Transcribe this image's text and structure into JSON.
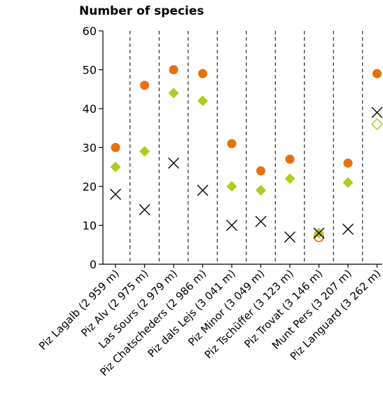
{
  "chart_data": {
    "type": "scatter",
    "title": "",
    "ylabel": "Number of species",
    "xlabel": "",
    "ylim": [
      0,
      60
    ],
    "yticks": [
      0,
      10,
      20,
      30,
      40,
      50,
      60
    ],
    "categories": [
      "Piz Lagalb (2 959 m)",
      "Piz Alv (2 975 m)",
      "Las Sours (2 979 m)",
      "Piz Chatscheders (2 986 m)",
      "Piz dals Lejs (3 041 m)",
      "Piz Minor (3 049 m)",
      "Piz Tschüffer (3 123 m)",
      "Piz Trovat (3 146 m)",
      "Munt Pers (3 207 m)",
      "Piz Languard (3 262 m)"
    ],
    "series": [
      {
        "marker": "circle",
        "color": "#e8700a",
        "values": [
          30,
          46,
          50,
          49,
          31,
          24,
          27,
          7,
          26,
          49
        ],
        "hollow": [
          false,
          false,
          false,
          false,
          false,
          false,
          false,
          true,
          false,
          false
        ]
      },
      {
        "marker": "diamond",
        "color": "#b5c91e",
        "values": [
          25,
          29,
          44,
          42,
          20,
          19,
          22,
          8,
          21,
          36
        ],
        "hollow": [
          false,
          false,
          false,
          false,
          false,
          false,
          false,
          false,
          false,
          true
        ]
      },
      {
        "marker": "cross",
        "color": "#000000",
        "values": [
          18,
          14,
          26,
          19,
          10,
          11,
          7,
          8,
          9,
          39
        ]
      }
    ],
    "grid": false,
    "legend": "none"
  }
}
